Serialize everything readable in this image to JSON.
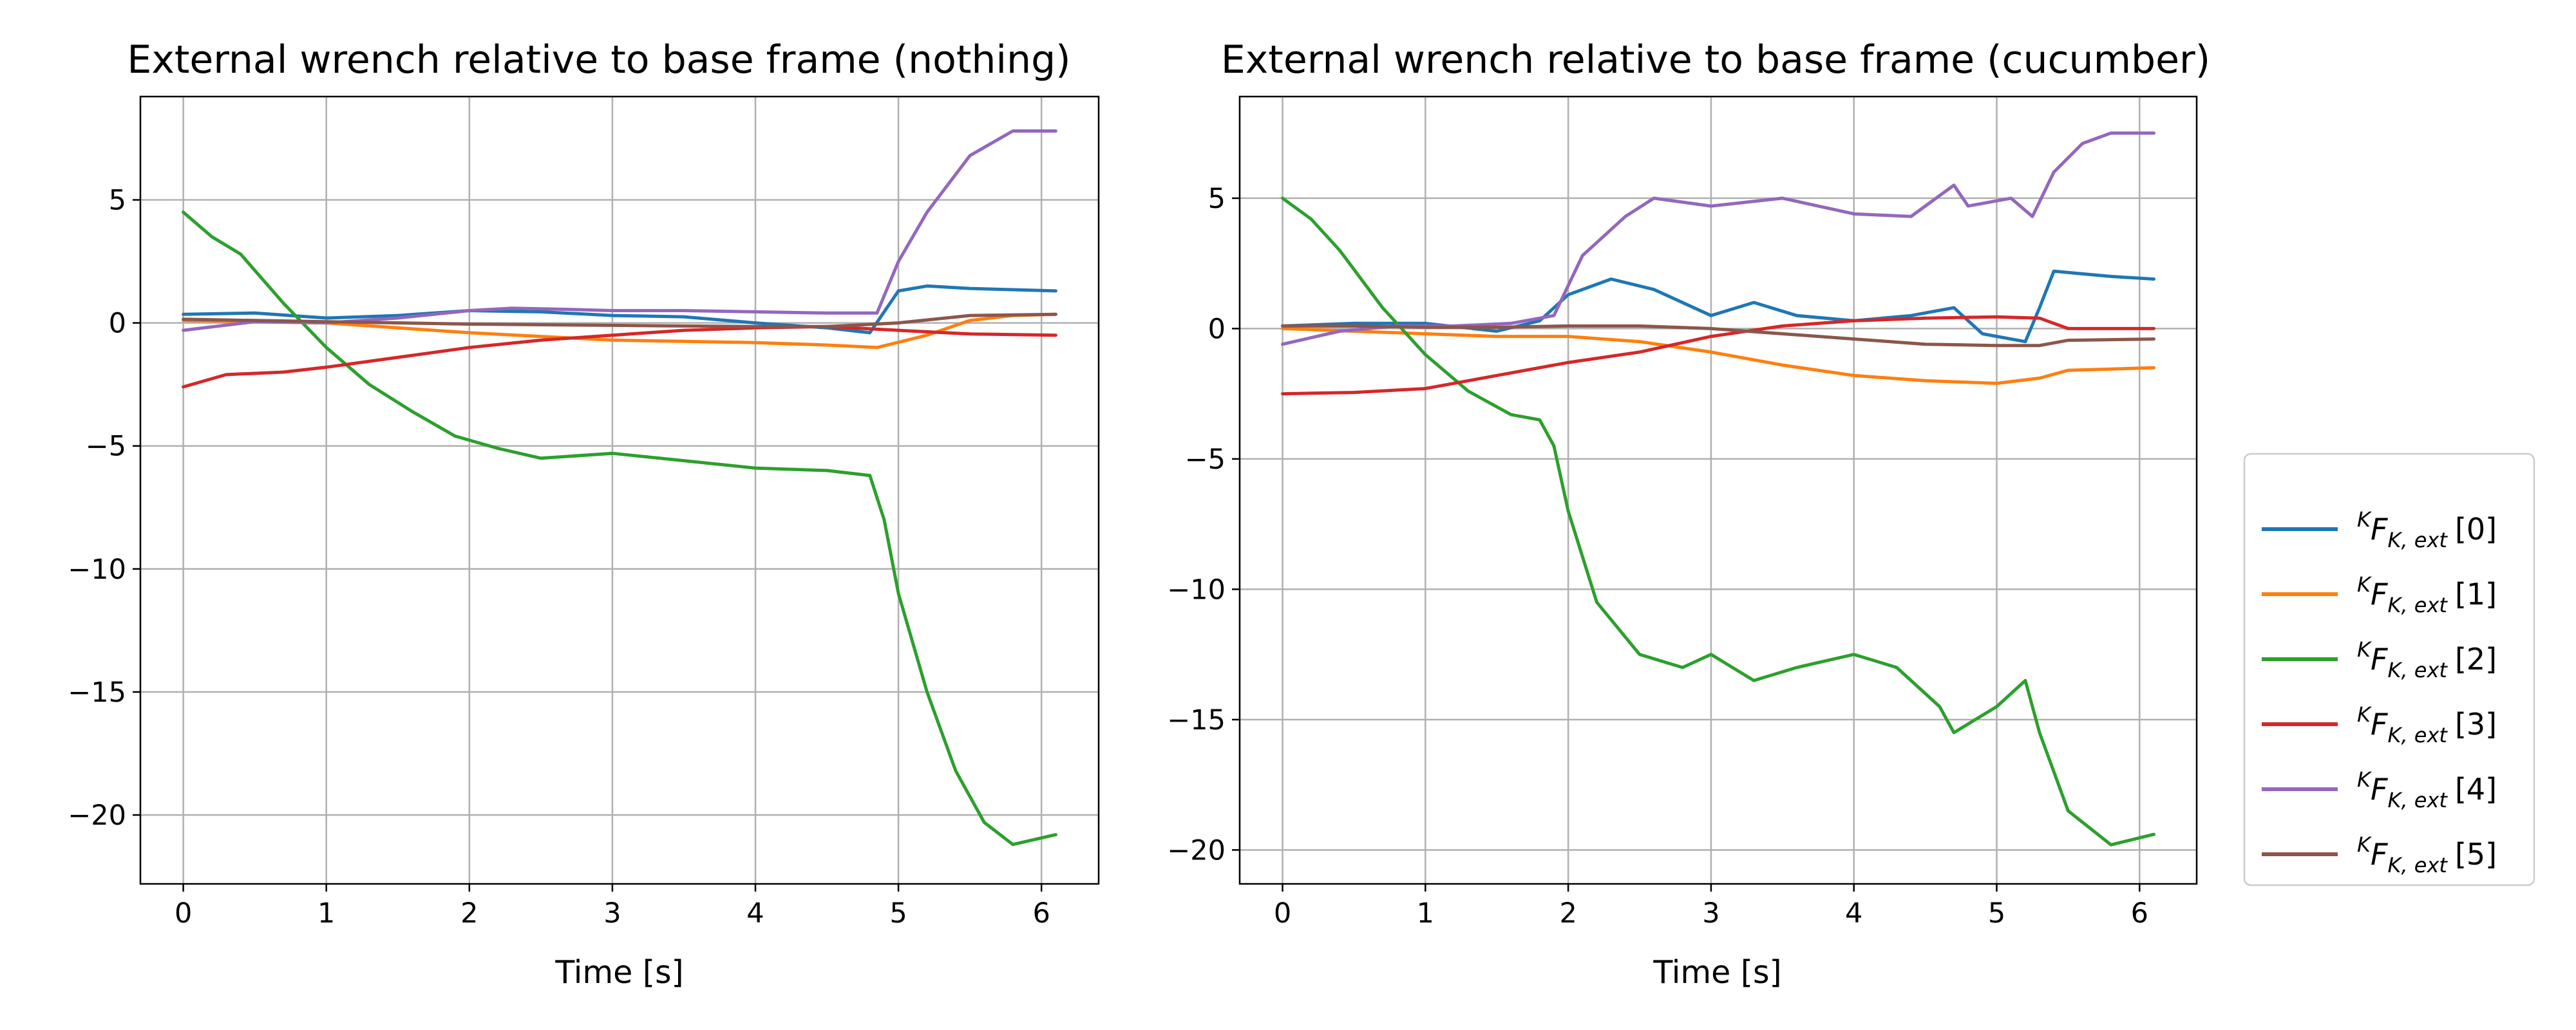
{
  "chart_data": [
    {
      "type": "line",
      "title": "External wrench relative to base frame (nothing)",
      "xlabel": "Time [s]",
      "ylabel": "",
      "xlim": [
        -0.3,
        6.4
      ],
      "ylim": [
        -22.8,
        9.2
      ],
      "xticks": [
        0,
        1,
        2,
        3,
        4,
        5,
        6
      ],
      "yticks": [
        5,
        0,
        -5,
        -10,
        -15,
        -20
      ],
      "xtick_labels": [
        "0",
        "1",
        "2",
        "3",
        "4",
        "5",
        "6"
      ],
      "ytick_labels": [
        "5",
        "0",
        "−5",
        "−10",
        "−15",
        "−20"
      ],
      "grid": true,
      "series": [
        {
          "name": "[0]",
          "color": "#1f77b4",
          "x": [
            0,
            0.5,
            1,
            1.5,
            2,
            2.5,
            3,
            3.5,
            4,
            4.5,
            4.8,
            5.0,
            5.2,
            5.5,
            6.1
          ],
          "y": [
            0.35,
            0.4,
            0.2,
            0.3,
            0.5,
            0.45,
            0.3,
            0.25,
            0.0,
            -0.2,
            -0.4,
            1.3,
            1.5,
            1.4,
            1.3
          ]
        },
        {
          "name": "[1]",
          "color": "#ff7f0e",
          "x": [
            0,
            0.5,
            1,
            1.5,
            2,
            2.5,
            3,
            3.5,
            4,
            4.5,
            4.85,
            5.2,
            5.5,
            5.8,
            6.1
          ],
          "y": [
            0.1,
            0.05,
            0.0,
            -0.2,
            -0.4,
            -0.55,
            -0.7,
            -0.75,
            -0.8,
            -0.9,
            -1.0,
            -0.5,
            0.1,
            0.3,
            0.35
          ]
        },
        {
          "name": "[2]",
          "color": "#2ca02c",
          "x": [
            0,
            0.2,
            0.4,
            0.7,
            1.0,
            1.3,
            1.6,
            1.9,
            2.2,
            2.5,
            3.0,
            3.5,
            4.0,
            4.5,
            4.8,
            4.9,
            5.0,
            5.2,
            5.4,
            5.6,
            5.8,
            6.1
          ],
          "y": [
            4.5,
            3.5,
            2.8,
            0.8,
            -1.0,
            -2.5,
            -3.6,
            -4.6,
            -5.1,
            -5.5,
            -5.3,
            -5.6,
            -5.9,
            -6.0,
            -6.2,
            -8.0,
            -11.0,
            -15.0,
            -18.2,
            -20.3,
            -21.2,
            -20.8
          ]
        },
        {
          "name": "[3]",
          "color": "#d62728",
          "x": [
            0,
            0.3,
            0.7,
            1.0,
            1.5,
            2.0,
            2.5,
            3.0,
            3.5,
            4.0,
            4.5,
            5.0,
            5.5,
            6.1
          ],
          "y": [
            -2.6,
            -2.1,
            -2.0,
            -1.8,
            -1.4,
            -1.0,
            -0.7,
            -0.5,
            -0.3,
            -0.2,
            -0.15,
            -0.3,
            -0.45,
            -0.5
          ]
        },
        {
          "name": "[4]",
          "color": "#9467bd",
          "x": [
            0,
            0.5,
            1,
            1.5,
            2,
            2.3,
            2.7,
            3,
            3.5,
            4,
            4.5,
            4.85,
            5.0,
            5.2,
            5.5,
            5.8,
            6.1
          ],
          "y": [
            -0.3,
            0.05,
            0.0,
            0.2,
            0.5,
            0.6,
            0.55,
            0.5,
            0.5,
            0.45,
            0.4,
            0.4,
            2.5,
            4.5,
            6.8,
            7.8,
            7.8
          ]
        },
        {
          "name": "[5]",
          "color": "#8c564b",
          "x": [
            0,
            0.5,
            1,
            2,
            3,
            4,
            4.5,
            5.0,
            5.5,
            6.1
          ],
          "y": [
            0.15,
            0.1,
            0.05,
            -0.05,
            -0.1,
            -0.15,
            -0.15,
            0.0,
            0.3,
            0.35
          ]
        }
      ]
    },
    {
      "type": "line",
      "title": "External wrench relative to base frame (cucumber)",
      "xlabel": "Time [s]",
      "ylabel": "",
      "xlim": [
        -0.3,
        6.4
      ],
      "ylim": [
        -21.3,
        8.9
      ],
      "xticks": [
        0,
        1,
        2,
        3,
        4,
        5,
        6
      ],
      "yticks": [
        5,
        0,
        -5,
        -10,
        -15,
        -20
      ],
      "xtick_labels": [
        "0",
        "1",
        "2",
        "3",
        "4",
        "5",
        "6"
      ],
      "ytick_labels": [
        "5",
        "0",
        "−5",
        "−10",
        "−15",
        "−20"
      ],
      "grid": true,
      "series": [
        {
          "name": "[0]",
          "color": "#1f77b4",
          "x": [
            0,
            0.5,
            1,
            1.5,
            1.8,
            2.0,
            2.3,
            2.6,
            3.0,
            3.3,
            3.6,
            4.0,
            4.4,
            4.7,
            4.9,
            5.2,
            5.3,
            5.4,
            5.6,
            5.8,
            6.1
          ],
          "y": [
            0.1,
            0.2,
            0.2,
            -0.1,
            0.3,
            1.3,
            1.9,
            1.5,
            0.5,
            1.0,
            0.5,
            0.3,
            0.5,
            0.8,
            -0.2,
            -0.5,
            0.8,
            2.2,
            2.1,
            2.0,
            1.9
          ]
        },
        {
          "name": "[1]",
          "color": "#ff7f0e",
          "x": [
            0,
            0.5,
            1,
            1.5,
            2,
            2.5,
            3,
            3.5,
            4,
            4.5,
            5,
            5.3,
            5.5,
            6.1
          ],
          "y": [
            0.0,
            -0.1,
            -0.2,
            -0.3,
            -0.3,
            -0.5,
            -0.9,
            -1.4,
            -1.8,
            -2.0,
            -2.1,
            -1.9,
            -1.6,
            -1.5
          ]
        },
        {
          "name": "[2]",
          "color": "#2ca02c",
          "x": [
            0,
            0.2,
            0.4,
            0.7,
            1.0,
            1.3,
            1.6,
            1.8,
            1.9,
            2.0,
            2.2,
            2.5,
            2.8,
            3.0,
            3.3,
            3.6,
            4.0,
            4.3,
            4.6,
            4.7,
            5.0,
            5.2,
            5.3,
            5.5,
            5.8,
            6.1
          ],
          "y": [
            5.0,
            4.2,
            3.0,
            0.8,
            -1.0,
            -2.4,
            -3.3,
            -3.5,
            -4.5,
            -7.0,
            -10.5,
            -12.5,
            -13.0,
            -12.5,
            -13.5,
            -13.0,
            -12.5,
            -13.0,
            -14.5,
            -15.5,
            -14.5,
            -13.5,
            -15.5,
            -18.5,
            -19.8,
            -19.4
          ]
        },
        {
          "name": "[3]",
          "color": "#d62728",
          "x": [
            0,
            0.5,
            1,
            1.5,
            2,
            2.5,
            3,
            3.5,
            4,
            4.5,
            5,
            5.3,
            5.5,
            6.1
          ],
          "y": [
            -2.5,
            -2.45,
            -2.3,
            -1.8,
            -1.3,
            -0.9,
            -0.3,
            0.1,
            0.3,
            0.4,
            0.45,
            0.4,
            0.0,
            0.0
          ]
        },
        {
          "name": "[4]",
          "color": "#9467bd",
          "x": [
            0,
            0.4,
            0.8,
            1.2,
            1.6,
            1.9,
            2.1,
            2.4,
            2.6,
            3.0,
            3.5,
            4.0,
            4.4,
            4.7,
            4.8,
            5.1,
            5.25,
            5.4,
            5.6,
            5.8,
            6.1
          ],
          "y": [
            -0.6,
            -0.1,
            0.1,
            0.1,
            0.2,
            0.5,
            2.8,
            4.3,
            5.0,
            4.7,
            5.0,
            4.4,
            4.3,
            5.5,
            4.7,
            5.0,
            4.3,
            6.0,
            7.1,
            7.5,
            7.5
          ]
        },
        {
          "name": "[5]",
          "color": "#8c564b",
          "x": [
            0,
            0.5,
            1,
            1.5,
            2,
            2.5,
            3,
            3.5,
            4,
            4.5,
            5.0,
            5.3,
            5.5,
            6.1
          ],
          "y": [
            0.1,
            0.1,
            0.05,
            0.05,
            0.1,
            0.1,
            0.0,
            -0.2,
            -0.4,
            -0.6,
            -0.65,
            -0.65,
            -0.45,
            -0.4
          ]
        }
      ]
    }
  ],
  "legend": {
    "placement": "right",
    "main": "F",
    "pre_superscript": "K",
    "subscript": "K, ext",
    "entries": [
      {
        "label": "[0]",
        "color": "#1f77b4"
      },
      {
        "label": "[1]",
        "color": "#ff7f0e"
      },
      {
        "label": "[2]",
        "color": "#2ca02c"
      },
      {
        "label": "[3]",
        "color": "#d62728"
      },
      {
        "label": "[4]",
        "color": "#9467bd"
      },
      {
        "label": "[5]",
        "color": "#8c564b"
      }
    ]
  }
}
